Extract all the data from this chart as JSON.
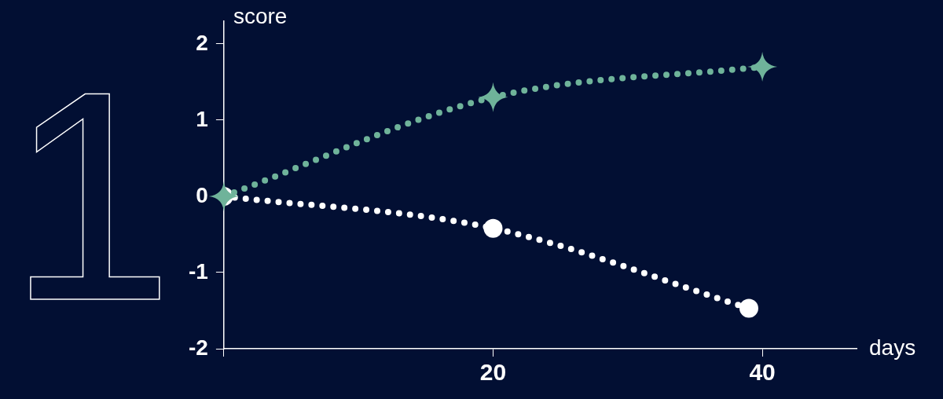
{
  "chart_data": {
    "type": "line",
    "xlabel": "days",
    "ylabel": "score",
    "annotations": [
      "1"
    ],
    "series": [
      {
        "color": "#6fb39a",
        "marker": "star",
        "x": [
          0,
          20,
          40
        ],
        "values": [
          0,
          1.3,
          1.7
        ]
      },
      {
        "color": "#ffffff",
        "marker": "circle",
        "x": [
          0,
          20,
          39
        ],
        "values": [
          0,
          -0.42,
          -1.47
        ]
      }
    ],
    "xlim": [
      0,
      47
    ],
    "xticks": [
      {
        "value": 0,
        "label": null
      },
      20,
      40
    ],
    "ylim": [
      -2,
      2.3
    ],
    "yticks": [
      -2,
      -1,
      0,
      1,
      2
    ],
    "line_style": "dotted",
    "grid": false,
    "legend": false
  }
}
